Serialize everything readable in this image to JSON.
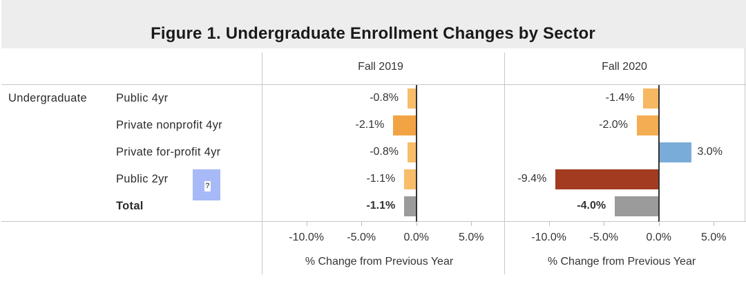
{
  "title": "Figure 1. Undergraduate Enrollment Changes by Sector",
  "row_group": "Undergraduate",
  "help_icon": {
    "name": "help-icon",
    "glyph": "?",
    "color": "#a7b9f6"
  },
  "chart_data": {
    "type": "bar",
    "orientation": "horizontal",
    "title": "Figure 1. Undergraduate Enrollment Changes by Sector",
    "categories": [
      "Public 4yr",
      "Private nonprofit 4yr",
      "Private for-profit 4yr",
      "Public 2yr",
      "Total"
    ],
    "bold_categories": [
      "Total"
    ],
    "xlabel": "% Change from Previous Year",
    "xlim": [
      -14,
      8
    ],
    "xticks": [
      -10,
      -5,
      0,
      5
    ],
    "xtick_labels": [
      "-10.0%",
      "-5.0%",
      "0.0%",
      "5.0%"
    ],
    "grid": false,
    "panels": [
      {
        "name": "Fall 2019",
        "values": [
          -0.8,
          -2.1,
          -0.8,
          -1.1,
          -1.1
        ],
        "labels": [
          "-0.8%",
          "-2.1%",
          "-0.8%",
          "-1.1%",
          "-1.1%"
        ],
        "colors": [
          "#f7bd6b",
          "#f2a444",
          "#f7bd6b",
          "#f7bd6b",
          "#9b9b9b"
        ]
      },
      {
        "name": "Fall 2020",
        "values": [
          -1.4,
          -2.0,
          3.0,
          -9.4,
          -4.0
        ],
        "labels": [
          "-1.4%",
          "-2.0%",
          "3.0%",
          "-9.4%",
          "-4.0%"
        ],
        "colors": [
          "#f6b862",
          "#f4ad52",
          "#79acd8",
          "#a23b20",
          "#9b9b9b"
        ]
      }
    ]
  }
}
